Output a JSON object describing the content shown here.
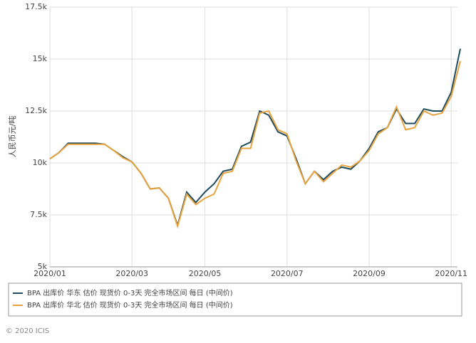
{
  "chart_data": {
    "type": "line",
    "y_label": "人民币元/吨",
    "categories": [
      "2020/01",
      null,
      null,
      null,
      null,
      null,
      null,
      null,
      null,
      "2020/03",
      null,
      null,
      null,
      null,
      null,
      null,
      null,
      "2020/05",
      null,
      null,
      null,
      null,
      null,
      null,
      null,
      null,
      "2020/07",
      null,
      null,
      null,
      null,
      null,
      null,
      null,
      null,
      "2020/09",
      null,
      null,
      null,
      null,
      null,
      null,
      null,
      null,
      "2020/11",
      null
    ],
    "series": [
      {
        "name": "BPA 出库价 华东 估价 现货价 0-3天 完全市场区间 每日 (中间价)",
        "color": "#1f4b5c",
        "values": [
          10200,
          10500,
          10950,
          10950,
          10950,
          10950,
          10900,
          10600,
          10300,
          10050,
          9500,
          8750,
          8800,
          8300,
          7000,
          8600,
          8100,
          8600,
          9000,
          9600,
          9700,
          10800,
          11000,
          12500,
          12300,
          11500,
          11300,
          10200,
          9000,
          9600,
          9200,
          9600,
          9800,
          9700,
          10100,
          10700,
          11500,
          11700,
          12600,
          11900,
          11900,
          12600,
          12500,
          12500,
          13400,
          15500
        ]
      },
      {
        "name": "BPA 出库价 华北 估价 现货价 0-3天 完全市场区间 每日 (中间价)",
        "color": "#e8a33d",
        "values": [
          10200,
          10500,
          10900,
          10900,
          10900,
          10900,
          10900,
          10600,
          10250,
          10050,
          9500,
          8750,
          8800,
          8300,
          6950,
          8500,
          8000,
          8300,
          8500,
          9500,
          9600,
          10700,
          10700,
          12400,
          12500,
          11600,
          11400,
          10100,
          9000,
          9600,
          9100,
          9500,
          9900,
          9800,
          10100,
          10600,
          11400,
          11700,
          12700,
          11600,
          11700,
          12500,
          12300,
          12400,
          13200,
          14900
        ]
      }
    ],
    "ylim": [
      5000,
      17500
    ],
    "yticks": [
      {
        "value": 5000,
        "label": "5k"
      },
      {
        "value": 7500,
        "label": "7.5k"
      },
      {
        "value": 10000,
        "label": "10k"
      },
      {
        "value": 12500,
        "label": "12.5k"
      },
      {
        "value": 15000,
        "label": "15k"
      },
      {
        "value": 17500,
        "label": "17.5k"
      }
    ],
    "grid": true,
    "copyright": "© 2020 ICIS"
  }
}
